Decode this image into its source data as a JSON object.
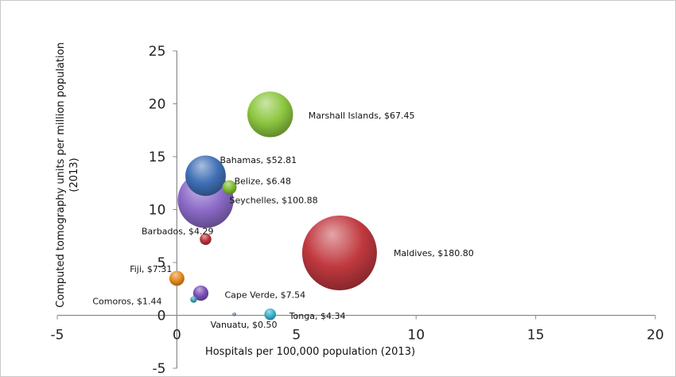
{
  "chart_data": {
    "type": "scatter",
    "xlabel": "Hospitals per 100,000 population (2013)",
    "ylabel_lines": [
      "Computed tomography units per million population",
      "(2013)"
    ],
    "xlim": [
      -5,
      20
    ],
    "ylim": [
      -5,
      25
    ],
    "x_ticks": [
      "-5",
      "0",
      "5",
      "10",
      "15",
      "20"
    ],
    "y_ticks": [
      "-5",
      "0",
      "5",
      "10",
      "15",
      "20",
      "25"
    ],
    "points": [
      {
        "label": "Marshall Islands, $67.45",
        "x": 3.9,
        "y": 19.0,
        "size": 67.45,
        "color": "#8cc63f"
      },
      {
        "label": "Bahamas, $52.81",
        "x": 1.2,
        "y": 13.2,
        "size": 52.81,
        "color": "#3f6fb5"
      },
      {
        "label": "Belize, $6.48",
        "x": 2.2,
        "y": 12.1,
        "size": 6.48,
        "color": "#7dbb2e"
      },
      {
        "label": "Seychelles, $100.88",
        "x": 1.2,
        "y": 10.9,
        "size": 100.88,
        "color": "#8c6bc9"
      },
      {
        "label": "Barbados, $4.29",
        "x": 1.2,
        "y": 7.2,
        "size": 4.29,
        "color": "#b8333a"
      },
      {
        "label": "Maldives, $180.80",
        "x": 6.8,
        "y": 5.9,
        "size": 180.8,
        "color": "#c0393f"
      },
      {
        "label": "Fiji, $7.31",
        "x": 0.0,
        "y": 3.5,
        "size": 7.31,
        "color": "#e58a1f"
      },
      {
        "label": "Cape Verde, $7.54",
        "x": 1.0,
        "y": 2.1,
        "size": 7.54,
        "color": "#7a4fb8"
      },
      {
        "label": "Comoros,  $1.44",
        "x": 0.7,
        "y": 1.5,
        "size": 1.44,
        "color": "#3aa0b8"
      },
      {
        "label": "Vanuatu, $0.50",
        "x": 2.4,
        "y": 0.1,
        "size": 0.5,
        "color": "#6f8fb8"
      },
      {
        "label": "Tonga, $4.34",
        "x": 3.9,
        "y": 0.1,
        "size": 4.34,
        "color": "#3ab0cf"
      }
    ]
  }
}
